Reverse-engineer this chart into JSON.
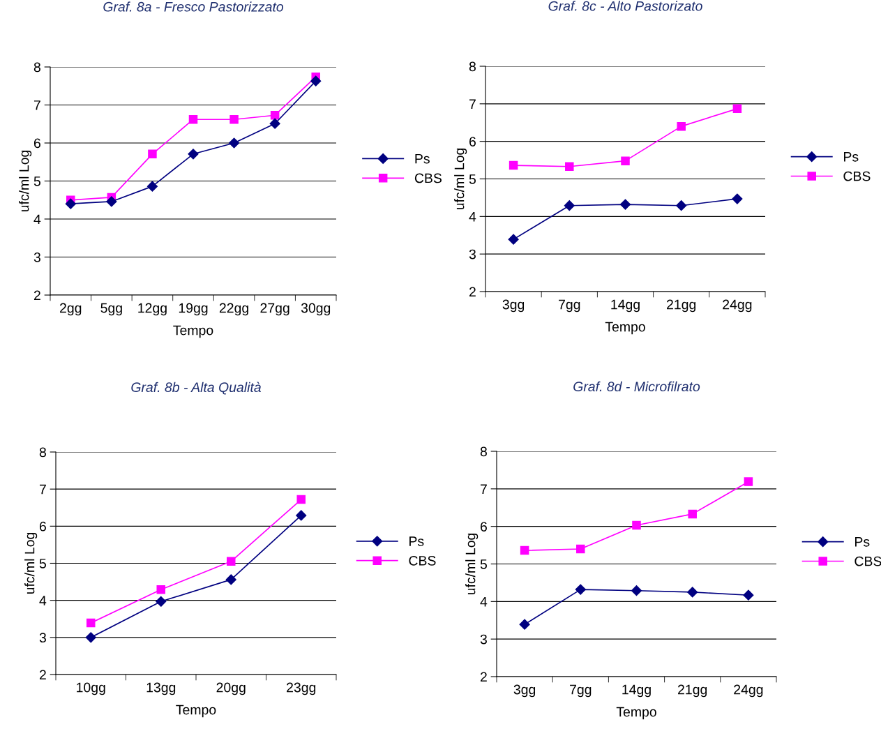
{
  "chart_data": [
    {
      "type": "line",
      "title": "Graf. 8a - Fresco Pastorizzato",
      "xlabel": "Tempo",
      "ylabel": "ufc/ml Log",
      "categories": [
        "2gg",
        "5gg",
        "12gg",
        "19gg",
        "22gg",
        "27gg",
        "30gg"
      ],
      "ylim": [
        2,
        8
      ],
      "yticks": [
        2,
        3,
        4,
        5,
        6,
        7,
        8
      ],
      "grid": "y",
      "legend": "right",
      "series": [
        {
          "name": "Ps",
          "color": "#000080",
          "marker": "diamond",
          "values": [
            4.4,
            4.46,
            4.86,
            5.71,
            6.0,
            6.51,
            7.63
          ]
        },
        {
          "name": "CBS",
          "color": "#ff00ff",
          "marker": "square",
          "values": [
            4.5,
            4.57,
            5.71,
            6.62,
            6.62,
            6.73,
            7.74
          ]
        }
      ]
    },
    {
      "type": "line",
      "title": "Graf. 8c - Alto Pastorizato",
      "xlabel": "Tempo",
      "ylabel": "ufc/ml Log",
      "categories": [
        "3gg",
        "7gg",
        "14gg",
        "21gg",
        "24gg"
      ],
      "ylim": [
        2,
        8
      ],
      "yticks": [
        2,
        3,
        4,
        5,
        6,
        7,
        8
      ],
      "grid": "y",
      "legend": "right",
      "series": [
        {
          "name": "Ps",
          "color": "#000080",
          "marker": "diamond",
          "values": [
            3.39,
            4.29,
            4.32,
            4.29,
            4.47
          ]
        },
        {
          "name": "CBS",
          "color": "#ff00ff",
          "marker": "square",
          "values": [
            5.36,
            5.33,
            5.48,
            6.4,
            6.87
          ]
        }
      ]
    },
    {
      "type": "line",
      "title": "Graf. 8b - Alta Qualità",
      "xlabel": "Tempo",
      "ylabel": "ufc/ml Log",
      "categories": [
        "10gg",
        "13gg",
        "20gg",
        "23gg"
      ],
      "ylim": [
        2,
        8
      ],
      "yticks": [
        2,
        3,
        4,
        5,
        6,
        7,
        8
      ],
      "grid": "y",
      "legend": "right",
      "series": [
        {
          "name": "Ps",
          "color": "#000080",
          "marker": "diamond",
          "values": [
            3.0,
            3.97,
            4.56,
            6.29
          ]
        },
        {
          "name": "CBS",
          "color": "#ff00ff",
          "marker": "square",
          "values": [
            3.39,
            4.29,
            5.05,
            6.72
          ]
        }
      ]
    },
    {
      "type": "line",
      "title": "Graf. 8d - Microfilrato",
      "xlabel": "Tempo",
      "ylabel": "ufc/ml Log",
      "categories": [
        "3gg",
        "7gg",
        "14gg",
        "21gg",
        "24gg"
      ],
      "ylim": [
        2,
        8
      ],
      "yticks": [
        2,
        3,
        4,
        5,
        6,
        7,
        8
      ],
      "grid": "y",
      "legend": "right",
      "series": [
        {
          "name": "Ps",
          "color": "#000080",
          "marker": "diamond",
          "values": [
            3.39,
            4.32,
            4.29,
            4.25,
            4.17
          ]
        },
        {
          "name": "CBS",
          "color": "#ff00ff",
          "marker": "square",
          "values": [
            5.36,
            5.4,
            6.03,
            6.33,
            7.19
          ]
        }
      ]
    }
  ]
}
